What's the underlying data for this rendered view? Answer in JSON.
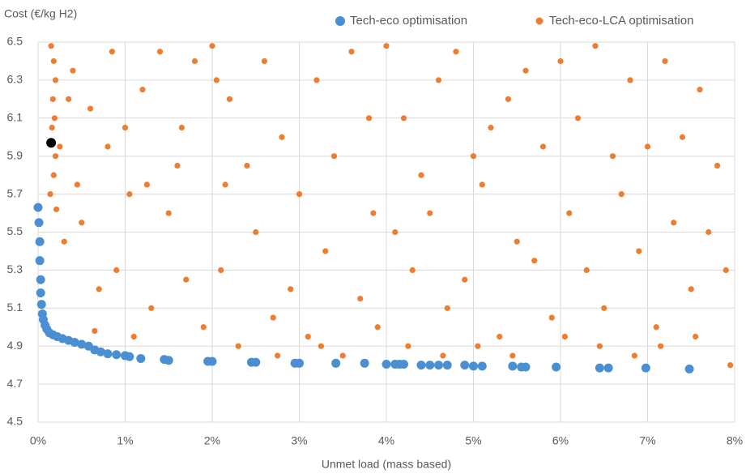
{
  "chart_data": {
    "type": "scatter",
    "title": "Cost (€/kg H2)",
    "x_label": "Unmet load (mass based)",
    "xlim": [
      0,
      8
    ],
    "ylim": [
      4.5,
      6.5
    ],
    "xticks": [
      {
        "value": 0,
        "label": "0%"
      },
      {
        "value": 1,
        "label": "1%"
      },
      {
        "value": 2,
        "label": "2%"
      },
      {
        "value": 3,
        "label": "3%"
      },
      {
        "value": 4,
        "label": "4%"
      },
      {
        "value": 5,
        "label": "5%"
      },
      {
        "value": 6,
        "label": "6%"
      },
      {
        "value": 7,
        "label": "7%"
      },
      {
        "value": 8,
        "label": "8%"
      }
    ],
    "yticks": [
      4.5,
      4.7,
      4.9,
      5.1,
      5.3,
      5.5,
      5.7,
      5.9,
      6.1,
      6.3,
      6.5
    ],
    "grid": true,
    "legend": "top-right",
    "series": [
      {
        "color": "#000000",
        "x": [
          0.15
        ],
        "values": [
          5.97
        ]
      },
      {
        "name": "Tech-eco optimisation",
        "color": "#4a8fd1",
        "x": [
          0.0,
          0.01,
          0.02,
          0.02,
          0.03,
          0.03,
          0.04,
          0.05,
          0.06,
          0.08,
          0.1,
          0.13,
          0.17,
          0.22,
          0.28,
          0.35,
          0.42,
          0.5,
          0.58,
          0.65,
          0.72,
          0.8,
          0.9,
          1.0,
          1.05,
          1.18,
          1.45,
          1.5,
          1.95,
          2.0,
          2.45,
          2.5,
          2.95,
          3.0,
          3.42,
          3.75,
          4.0,
          4.1,
          4.15,
          4.2,
          4.4,
          4.5,
          4.6,
          4.7,
          4.9,
          5.0,
          5.1,
          5.45,
          5.55,
          5.6,
          5.95,
          6.45,
          6.55,
          6.98,
          7.48
        ],
        "values": [
          5.63,
          5.55,
          5.45,
          5.35,
          5.25,
          5.18,
          5.12,
          5.07,
          5.04,
          5.01,
          4.99,
          4.97,
          4.96,
          4.95,
          4.94,
          4.93,
          4.92,
          4.91,
          4.9,
          4.88,
          4.87,
          4.86,
          4.855,
          4.85,
          4.845,
          4.835,
          4.83,
          4.825,
          4.82,
          4.82,
          4.815,
          4.815,
          4.81,
          4.81,
          4.81,
          4.81,
          4.805,
          4.805,
          4.805,
          4.805,
          4.8,
          4.8,
          4.8,
          4.8,
          4.8,
          4.795,
          4.795,
          4.795,
          4.79,
          4.79,
          4.79,
          4.785,
          4.785,
          4.785,
          4.78
        ]
      },
      {
        "name": "Tech-eco-LCA optimisation",
        "color": "#ed7d31",
        "x": [
          0.15,
          0.18,
          0.2,
          0.17,
          0.19,
          0.16,
          0.2,
          0.18,
          0.14,
          0.21,
          0.4,
          0.6,
          0.8,
          1.0,
          1.2,
          1.4,
          1.6,
          1.8,
          0.5,
          0.9,
          1.3,
          1.1,
          0.7,
          0.3,
          1.5,
          1.9,
          2.0,
          2.2,
          2.4,
          2.6,
          2.8,
          3.0,
          3.2,
          3.4,
          3.6,
          3.8,
          2.1,
          2.5,
          2.9,
          3.3,
          3.7,
          2.3,
          2.7,
          3.1,
          3.5,
          3.9,
          4.0,
          4.2,
          4.4,
          4.6,
          4.8,
          5.0,
          5.2,
          5.4,
          5.6,
          5.8,
          4.1,
          4.3,
          4.5,
          4.7,
          4.9,
          5.1,
          5.3,
          5.5,
          5.7,
          5.9,
          4.25,
          4.65,
          5.05,
          5.45,
          6.0,
          6.2,
          6.4,
          6.6,
          6.8,
          7.0,
          7.2,
          7.4,
          7.6,
          7.8,
          6.1,
          6.3,
          6.5,
          6.7,
          6.9,
          7.1,
          7.3,
          7.5,
          7.7,
          7.9,
          6.05,
          6.45,
          6.85,
          7.15,
          7.55,
          7.95,
          0.25,
          0.35,
          0.45,
          0.65,
          1.05,
          1.7,
          2.15,
          2.75,
          3.25,
          3.85,
          0.85,
          1.25,
          1.65,
          2.05
        ],
        "values": [
          6.48,
          6.4,
          6.3,
          6.2,
          6.1,
          6.05,
          5.9,
          5.8,
          5.7,
          5.62,
          6.35,
          6.15,
          5.95,
          6.05,
          6.25,
          6.45,
          5.85,
          6.4,
          5.55,
          5.3,
          5.1,
          4.95,
          5.2,
          5.45,
          5.6,
          5.0,
          6.48,
          6.2,
          5.85,
          6.4,
          6.0,
          5.7,
          6.3,
          5.9,
          6.45,
          6.1,
          5.3,
          5.5,
          5.2,
          5.4,
          5.15,
          4.9,
          5.05,
          4.95,
          4.85,
          5.0,
          6.48,
          6.1,
          5.8,
          6.3,
          6.45,
          5.9,
          6.05,
          6.2,
          6.35,
          5.95,
          5.5,
          5.3,
          5.6,
          5.1,
          5.25,
          5.75,
          4.95,
          5.45,
          5.35,
          5.05,
          4.9,
          4.85,
          4.9,
          4.85,
          6.4,
          6.1,
          6.48,
          5.9,
          6.3,
          5.95,
          6.4,
          6.0,
          6.25,
          5.85,
          5.6,
          5.3,
          5.1,
          5.7,
          5.4,
          5.0,
          5.55,
          5.2,
          5.5,
          5.3,
          4.95,
          4.9,
          4.85,
          4.9,
          4.95,
          4.8,
          5.95,
          6.2,
          5.75,
          4.98,
          5.7,
          5.25,
          5.75,
          4.85,
          4.9,
          5.6,
          6.45,
          5.75,
          6.05,
          6.3
        ]
      }
    ]
  }
}
